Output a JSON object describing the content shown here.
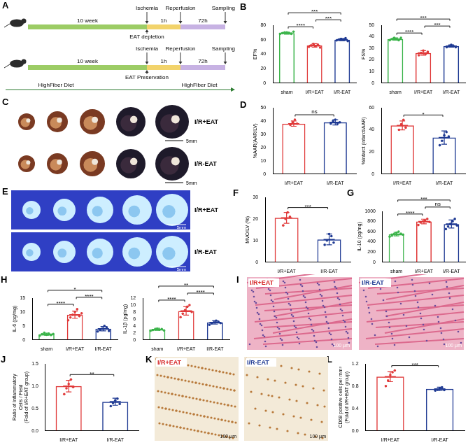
{
  "chart_data": [
    {
      "panel": "B",
      "type": "bar",
      "categories": [
        "sham",
        "I/R+EAT",
        "I/R-EAT"
      ],
      "y_label": "EF%",
      "values": [
        69,
        52,
        60
      ],
      "sd": [
        1.5,
        2.5,
        1.5
      ],
      "points": [
        [
          68,
          69,
          70,
          70,
          69,
          68,
          71
        ],
        [
          50,
          52,
          54,
          51,
          53,
          49
        ],
        [
          59,
          60,
          61,
          60,
          62,
          58
        ]
      ],
      "colors": [
        "#3cb44b",
        "#e03a3a",
        "#1f3a93"
      ],
      "ylim": [
        0,
        80
      ],
      "yticks": [
        0,
        20,
        40,
        60,
        80
      ],
      "grid": false,
      "marker": "circle",
      "significance": [
        {
          "from": 0,
          "to": 1,
          "label": "****"
        },
        {
          "from": 1,
          "to": 2,
          "label": "***"
        },
        {
          "from": 0,
          "to": 2,
          "label": "***"
        }
      ]
    },
    {
      "type": "bar",
      "categories": [
        "sham",
        "I/R+EAT",
        "I/R-EAT"
      ],
      "y_label": "FS%",
      "values": [
        38,
        26,
        32
      ],
      "sd": [
        1,
        2,
        1
      ],
      "points": [
        [
          37,
          38,
          39,
          38,
          37,
          39
        ],
        [
          24,
          26,
          28,
          25,
          27
        ],
        [
          31,
          32,
          33,
          32,
          31
        ]
      ],
      "colors": [
        "#3cb44b",
        "#e03a3a",
        "#1f3a93"
      ],
      "ylim": [
        0,
        50
      ],
      "yticks": [
        0,
        10,
        20,
        30,
        40,
        50
      ],
      "grid": false,
      "marker": "circle",
      "significance": [
        {
          "from": 0,
          "to": 1,
          "label": "****"
        },
        {
          "from": 1,
          "to": 2,
          "label": "***"
        },
        {
          "from": 0,
          "to": 2,
          "label": "***"
        }
      ]
    },
    {
      "panel": "D",
      "type": "bar",
      "categories": [
        "I/R+EAT",
        "I/R-EAT"
      ],
      "y_label": "%AAR(AAR/LV)",
      "values": [
        38,
        39
      ],
      "sd": [
        2,
        2
      ],
      "points": [
        [
          37,
          39,
          41,
          38
        ],
        [
          38,
          40,
          41,
          38,
          39
        ]
      ],
      "colors": [
        "#e03a3a",
        "#1f3a93"
      ],
      "ylim": [
        0,
        50
      ],
      "yticks": [
        0,
        10,
        20,
        30,
        40,
        50
      ],
      "grid": false,
      "marker": "circle",
      "significance": [
        {
          "from": 0,
          "to": 1,
          "label": "ns"
        }
      ]
    },
    {
      "type": "bar",
      "categories": [
        "I/R+EAT",
        "I/R-EAT"
      ],
      "y_label": "%Infarct (infarct/AAR)",
      "values": [
        44,
        33
      ],
      "sd": [
        4,
        6
      ],
      "points": [
        [
          40,
          45,
          49,
          42
        ],
        [
          26,
          30,
          35,
          38,
          34
        ]
      ],
      "colors": [
        "#e03a3a",
        "#1f3a93"
      ],
      "ylim": [
        0,
        60
      ],
      "yticks": [
        0,
        20,
        40,
        60
      ],
      "grid": false,
      "marker": "circle",
      "significance": [
        {
          "from": 0,
          "to": 1,
          "label": "*"
        }
      ]
    },
    {
      "panel": "F",
      "type": "bar",
      "categories": [
        "I/R+EAT",
        "I/R-EAT"
      ],
      "y_label": "MVO/LV (%)",
      "values": [
        20.5,
        10.5
      ],
      "sd": [
        2.5,
        2.5
      ],
      "points": [
        [
          17,
          20,
          23,
          21
        ],
        [
          8,
          10,
          13,
          12,
          9
        ]
      ],
      "colors": [
        "#e03a3a",
        "#1f3a93"
      ],
      "ylim": [
        0,
        30
      ],
      "yticks": [
        0,
        10,
        20,
        30
      ],
      "grid": false,
      "marker": "circle",
      "significance": [
        {
          "from": 0,
          "to": 1,
          "label": "***"
        }
      ]
    },
    {
      "panel": "G",
      "type": "bar",
      "categories": [
        "sham",
        "I/R+EAT",
        "I/R-EAT"
      ],
      "y_label": "IL-10 (pg/mg)",
      "values": [
        550,
        800,
        750
      ],
      "sd": [
        35,
        45,
        80
      ],
      "points": [
        [
          500,
          520,
          550,
          580,
          600,
          560,
          540
        ],
        [
          730,
          780,
          800,
          820,
          850,
          790
        ],
        [
          650,
          700,
          750,
          800,
          850,
          720
        ]
      ],
      "colors": [
        "#3cb44b",
        "#e03a3a",
        "#1f3a93"
      ],
      "ylim": [
        0,
        1000
      ],
      "yticks": [
        0,
        200,
        400,
        600,
        800,
        1000
      ],
      "grid": false,
      "marker": "circle",
      "significance": [
        {
          "from": 0,
          "to": 1,
          "label": "****"
        },
        {
          "from": 1,
          "to": 2,
          "label": "ns"
        },
        {
          "from": 0,
          "to": 2,
          "label": "***"
        }
      ]
    },
    {
      "panel": "H",
      "type": "bar",
      "categories": [
        "sham",
        "I/R+EAT",
        "I/R-EAT"
      ],
      "y_label": "IL-6 (pg/mg)",
      "values": [
        2,
        9,
        4
      ],
      "sd": [
        0.4,
        1.3,
        0.8
      ],
      "points": [
        [
          1.5,
          2,
          2.5,
          1.8,
          2.2,
          1.7,
          2.1
        ],
        [
          7,
          8,
          9,
          10,
          11,
          8.5,
          9.5
        ],
        [
          3,
          3.5,
          4,
          5,
          4.5,
          3.2
        ]
      ],
      "colors": [
        "#3cb44b",
        "#e03a3a",
        "#1f3a93"
      ],
      "ylim": [
        0,
        15
      ],
      "yticks": [
        0,
        5,
        10,
        15
      ],
      "grid": false,
      "marker": "circle",
      "significance": [
        {
          "from": 0,
          "to": 1,
          "label": "****"
        },
        {
          "from": 1,
          "to": 2,
          "label": "****"
        },
        {
          "from": 0,
          "to": 2,
          "label": "*"
        }
      ]
    },
    {
      "type": "bar",
      "categories": [
        "sham",
        "I/R+EAT",
        "I/R-EAT"
      ],
      "y_label": "IL-1β (pg/mg)",
      "values": [
        3,
        8.3,
        5
      ],
      "sd": [
        0.3,
        1.2,
        0.5
      ],
      "points": [
        [
          2.6,
          2.8,
          3,
          3.2,
          2.9,
          3.1,
          2.7
        ],
        [
          6.5,
          7.5,
          8.5,
          9.5,
          10,
          8
        ],
        [
          4.3,
          4.7,
          5,
          5.5,
          5.2,
          4.8
        ]
      ],
      "colors": [
        "#3cb44b",
        "#e03a3a",
        "#1f3a93"
      ],
      "ylim": [
        0,
        12
      ],
      "yticks": [
        0,
        2,
        4,
        6,
        8,
        10,
        12
      ],
      "grid": false,
      "marker": "circle",
      "significance": [
        {
          "from": 0,
          "to": 1,
          "label": "****"
        },
        {
          "from": 1,
          "to": 2,
          "label": "****"
        },
        {
          "from": 0,
          "to": 2,
          "label": "**"
        }
      ]
    },
    {
      "panel": "J",
      "type": "bar",
      "categories": [
        "I/R+EAT",
        "I/R-EAT"
      ],
      "y_label": [
        "Ratio of Inflammatory",
        "Cells / Field",
        "(Fold of I/R+EAT group)"
      ],
      "values": [
        1.0,
        0.65
      ],
      "sd": [
        0.13,
        0.08
      ],
      "points": [
        [
          0.82,
          0.95,
          1.05,
          1.15,
          0.98
        ],
        [
          0.55,
          0.62,
          0.68,
          0.72,
          0.6
        ]
      ],
      "colors": [
        "#e03a3a",
        "#1f3a93"
      ],
      "ylim": [
        0,
        1.5
      ],
      "yticks": [
        {
          "value": 0,
          "label": "0.0"
        },
        {
          "value": 0.5,
          "label": "0.5"
        },
        {
          "value": 1,
          "label": "1.0"
        },
        {
          "value": 1.5,
          "label": "1.5"
        }
      ],
      "grid": false,
      "marker": "circle",
      "significance": [
        {
          "from": 0,
          "to": 1,
          "label": "**"
        }
      ]
    },
    {
      "panel": "L",
      "type": "bar",
      "categories": [
        "I/R+EAT",
        "I/R-EAT"
      ],
      "y_label": [
        "CD68 positive cells per mm²",
        "(Fold of I/R+EAT group)"
      ],
      "values": [
        0.97,
        0.75
      ],
      "sd": [
        0.09,
        0.03
      ],
      "points": [
        [
          0.8,
          0.9,
          1.0,
          1.05,
          1.08
        ],
        [
          0.72,
          0.74,
          0.76,
          0.78,
          0.73
        ]
      ],
      "colors": [
        "#e03a3a",
        "#1f3a93"
      ],
      "ylim": [
        0,
        1.2
      ],
      "yticks": [
        {
          "value": 0,
          "label": "0.0"
        },
        {
          "value": 0.4,
          "label": "0.4"
        },
        {
          "value": 0.8,
          "label": "0.8"
        },
        {
          "value": 1.2,
          "label": "1.2"
        }
      ],
      "grid": false,
      "marker": "circle",
      "significance": [
        {
          "from": 0,
          "to": 1,
          "label": "***"
        }
      ]
    }
  ],
  "figure": {
    "A": {
      "label": "A",
      "rows": [
        {
          "events": [
            "Ischemia",
            "Reperfusion",
            "Sampling"
          ],
          "phases": [
            "10 week",
            "1h",
            "72h"
          ],
          "note": "EAT depletion"
        },
        {
          "events": [
            "Ischemia",
            "Reperfusion",
            "Sampling"
          ],
          "phases": [
            "10 week",
            "1h",
            "72h"
          ],
          "note": "EAT Preservation",
          "diet": [
            "HighFiber Diet",
            "HighFiber Diet"
          ]
        }
      ]
    },
    "C": {
      "label": "C",
      "groups": [
        "I/R+EAT",
        "I/R-EAT"
      ],
      "scale_bar": "5mm"
    },
    "E": {
      "label": "E",
      "groups": [
        "I/R+EAT",
        "I/R-EAT"
      ],
      "scale_bar": "5mm"
    },
    "I": {
      "label": "I",
      "images": [
        "I/R+EAT",
        "I/R-EAT"
      ],
      "scale_bar": "100 μm"
    },
    "K": {
      "label": "K",
      "images": [
        "I/R+EAT",
        "I/R-EAT"
      ],
      "scale_bar": "100 μm"
    }
  }
}
